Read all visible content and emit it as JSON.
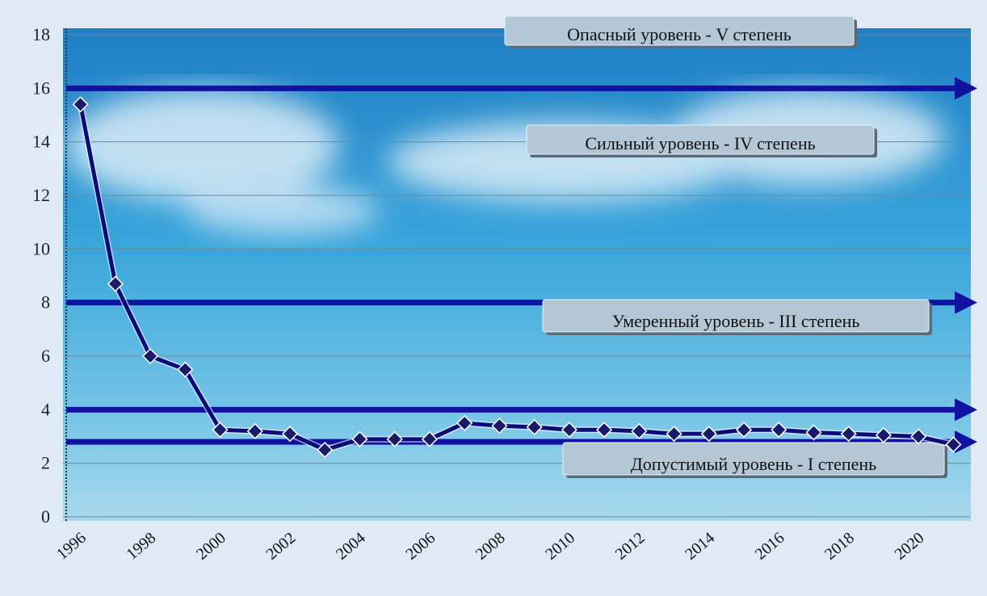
{
  "chart_data": {
    "type": "line",
    "categories": [
      "1996",
      null,
      "1998",
      null,
      "2000",
      null,
      "2002",
      null,
      "2004",
      null,
      "2006",
      null,
      "2008",
      null,
      "2010",
      null,
      "2012",
      null,
      "2014",
      null,
      "2016",
      null,
      "2018",
      null,
      "2020",
      null
    ],
    "series": [
      {
        "color": "#0c0c78",
        "values": [
          15.4,
          8.7,
          6.0,
          5.5,
          3.25,
          3.2,
          3.1,
          2.5,
          2.9,
          2.9,
          2.9,
          3.5,
          3.4,
          3.35,
          3.25,
          3.25,
          3.2,
          3.1,
          3.1,
          3.25,
          3.25,
          3.15,
          3.1,
          3.05,
          3.0,
          2.7
        ]
      }
    ],
    "reference_lines": [
      16,
      8,
      4,
      2.8
    ],
    "reference_color": "#1212a0",
    "annotations": [
      "Опасный уровень - V степень",
      "Сильный уровень - IV степень",
      "Умеренный уровень - III степень",
      "Допустимый уровень - I степень"
    ],
    "ylim": [
      0,
      18
    ],
    "yticks": [
      0,
      2,
      4,
      6,
      8,
      10,
      12,
      14,
      16,
      18
    ],
    "grid": true
  }
}
